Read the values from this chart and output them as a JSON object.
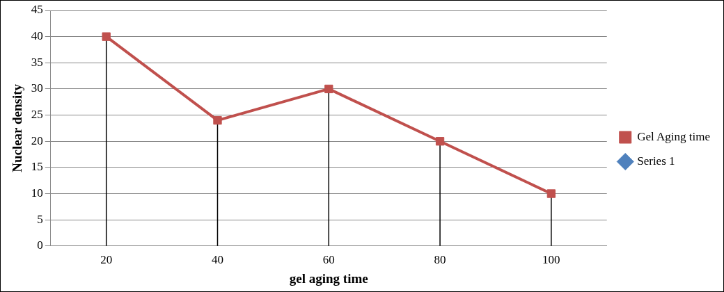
{
  "chart_data": {
    "type": "line",
    "xlabel": "gel aging time",
    "ylabel": "Nuclear density",
    "categories": [
      "20",
      "40",
      "60",
      "80",
      "100"
    ],
    "series": [
      {
        "name": "Gel Aging time",
        "color": "#c0504d",
        "values": [
          40,
          24,
          30,
          20,
          10
        ],
        "errors": [
          [
            0,
            40
          ],
          [
            0,
            24
          ],
          [
            0,
            30
          ],
          [
            0,
            20
          ],
          [
            0,
            10
          ]
        ]
      },
      {
        "name": "Series 1",
        "color": "#4f81bd",
        "values": [
          null,
          null,
          null,
          null,
          null
        ]
      }
    ],
    "ylim": [
      0,
      45
    ],
    "yticks": [
      0,
      5,
      10,
      15,
      20,
      25,
      30,
      35,
      40,
      45
    ],
    "grid": "y",
    "legend": "right",
    "marker": "square"
  }
}
